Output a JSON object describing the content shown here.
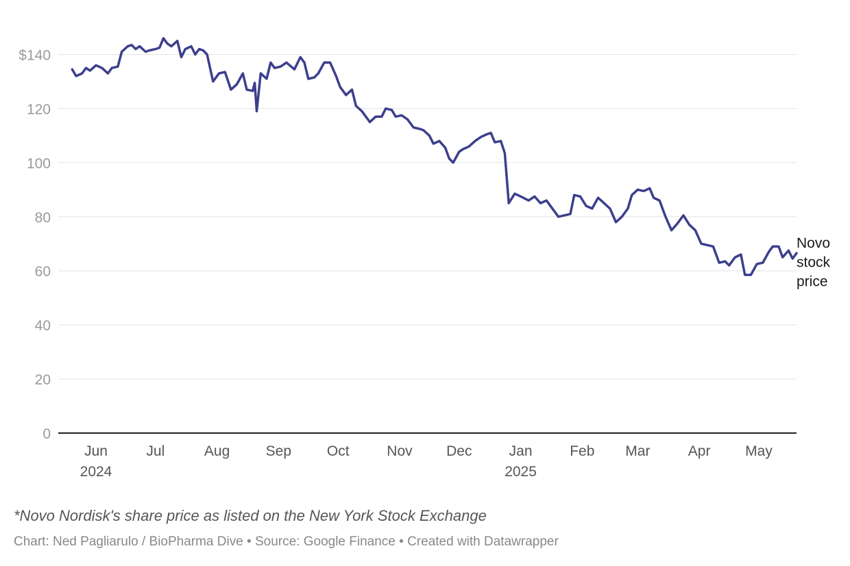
{
  "chart_data": {
    "type": "line",
    "title": "",
    "xlabel": "",
    "ylabel": "",
    "ylim": [
      0,
      150
    ],
    "y_ticks": [
      0,
      20,
      40,
      60,
      80,
      100,
      120,
      140
    ],
    "y_tick_labels": [
      "0",
      "20",
      "40",
      "60",
      "80",
      "100",
      "120",
      "$140"
    ],
    "x_range": [
      "2024-05-13",
      "2025-05-20"
    ],
    "x_ticks": [
      {
        "date": "2024-06-01",
        "label": "Jun",
        "sublabel": "2024"
      },
      {
        "date": "2024-07-01",
        "label": "Jul",
        "sublabel": ""
      },
      {
        "date": "2024-08-01",
        "label": "Aug",
        "sublabel": ""
      },
      {
        "date": "2024-09-01",
        "label": "Sep",
        "sublabel": ""
      },
      {
        "date": "2024-10-01",
        "label": "Oct",
        "sublabel": ""
      },
      {
        "date": "2024-11-01",
        "label": "Nov",
        "sublabel": ""
      },
      {
        "date": "2024-12-01",
        "label": "Dec",
        "sublabel": ""
      },
      {
        "date": "2025-01-01",
        "label": "Jan",
        "sublabel": "2025"
      },
      {
        "date": "2025-02-01",
        "label": "Feb",
        "sublabel": ""
      },
      {
        "date": "2025-03-01",
        "label": "Mar",
        "sublabel": ""
      },
      {
        "date": "2025-04-01",
        "label": "Apr",
        "sublabel": ""
      },
      {
        "date": "2025-05-01",
        "label": "May",
        "sublabel": ""
      }
    ],
    "grid": true,
    "series": [
      {
        "name": "Novo stock price",
        "color": "#3c3f8c",
        "points": [
          [
            "2024-05-20",
            134.5
          ],
          [
            "2024-05-22",
            132.0
          ],
          [
            "2024-05-25",
            133.0
          ],
          [
            "2024-05-27",
            135.0
          ],
          [
            "2024-05-29",
            134.0
          ],
          [
            "2024-06-01",
            136.0
          ],
          [
            "2024-06-04",
            135.0
          ],
          [
            "2024-06-07",
            133.0
          ],
          [
            "2024-06-09",
            135.0
          ],
          [
            "2024-06-12",
            135.5
          ],
          [
            "2024-06-14",
            141.0
          ],
          [
            "2024-06-17",
            143.0
          ],
          [
            "2024-06-19",
            143.5
          ],
          [
            "2024-06-21",
            142.0
          ],
          [
            "2024-06-23",
            143.0
          ],
          [
            "2024-06-26",
            141.0
          ],
          [
            "2024-06-28",
            141.5
          ],
          [
            "2024-07-01",
            142.0
          ],
          [
            "2024-07-03",
            142.5
          ],
          [
            "2024-07-05",
            146.0
          ],
          [
            "2024-07-07",
            144.0
          ],
          [
            "2024-07-09",
            143.0
          ],
          [
            "2024-07-12",
            145.0
          ],
          [
            "2024-07-14",
            139.0
          ],
          [
            "2024-07-16",
            142.0
          ],
          [
            "2024-07-19",
            143.0
          ],
          [
            "2024-07-21",
            140.0
          ],
          [
            "2024-07-23",
            142.0
          ],
          [
            "2024-07-25",
            141.5
          ],
          [
            "2024-07-27",
            140.0
          ],
          [
            "2024-07-30",
            130.0
          ],
          [
            "2024-08-02",
            133.0
          ],
          [
            "2024-08-05",
            133.5
          ],
          [
            "2024-08-08",
            127.0
          ],
          [
            "2024-08-11",
            129.0
          ],
          [
            "2024-08-14",
            133.0
          ],
          [
            "2024-08-16",
            127.0
          ],
          [
            "2024-08-19",
            126.5
          ],
          [
            "2024-08-20",
            129.5
          ],
          [
            "2024-08-21",
            119.0
          ],
          [
            "2024-08-23",
            133.0
          ],
          [
            "2024-08-26",
            131.0
          ],
          [
            "2024-08-28",
            137.0
          ],
          [
            "2024-08-30",
            135.0
          ],
          [
            "2024-09-02",
            135.5
          ],
          [
            "2024-09-05",
            137.0
          ],
          [
            "2024-09-09",
            134.5
          ],
          [
            "2024-09-12",
            139.0
          ],
          [
            "2024-09-14",
            137.0
          ],
          [
            "2024-09-16",
            131.0
          ],
          [
            "2024-09-19",
            131.5
          ],
          [
            "2024-09-21",
            133.0
          ],
          [
            "2024-09-24",
            137.0
          ],
          [
            "2024-09-27",
            137.0
          ],
          [
            "2024-09-30",
            132.0
          ],
          [
            "2024-10-02",
            128.0
          ],
          [
            "2024-10-05",
            125.0
          ],
          [
            "2024-10-08",
            127.0
          ],
          [
            "2024-10-10",
            121.0
          ],
          [
            "2024-10-13",
            119.0
          ],
          [
            "2024-10-17",
            115.0
          ],
          [
            "2024-10-20",
            117.0
          ],
          [
            "2024-10-23",
            117.0
          ],
          [
            "2024-10-25",
            120.0
          ],
          [
            "2024-10-28",
            119.5
          ],
          [
            "2024-10-30",
            117.0
          ],
          [
            "2024-11-02",
            117.5
          ],
          [
            "2024-11-05",
            116.0
          ],
          [
            "2024-11-08",
            113.0
          ],
          [
            "2024-11-11",
            112.5
          ],
          [
            "2024-11-13",
            112.0
          ],
          [
            "2024-11-16",
            110.0
          ],
          [
            "2024-11-18",
            107.0
          ],
          [
            "2024-11-21",
            108.0
          ],
          [
            "2024-11-24",
            105.5
          ],
          [
            "2024-11-26",
            101.5
          ],
          [
            "2024-11-28",
            100.0
          ],
          [
            "2024-12-01",
            104.0
          ],
          [
            "2024-12-03",
            105.0
          ],
          [
            "2024-12-06",
            106.0
          ],
          [
            "2024-12-09",
            108.0
          ],
          [
            "2024-12-12",
            109.5
          ],
          [
            "2024-12-15",
            110.5
          ],
          [
            "2024-12-17",
            111.0
          ],
          [
            "2024-12-19",
            107.5
          ],
          [
            "2024-12-22",
            108.0
          ],
          [
            "2024-12-24",
            103.5
          ],
          [
            "2024-12-26",
            85.0
          ],
          [
            "2024-12-29",
            88.5
          ],
          [
            "2025-01-01",
            87.5
          ],
          [
            "2025-01-05",
            86.0
          ],
          [
            "2025-01-08",
            87.5
          ],
          [
            "2025-01-11",
            85.0
          ],
          [
            "2025-01-14",
            86.0
          ],
          [
            "2025-01-17",
            83.0
          ],
          [
            "2025-01-20",
            80.0
          ],
          [
            "2025-01-23",
            80.5
          ],
          [
            "2025-01-26",
            81.0
          ],
          [
            "2025-01-28",
            88.0
          ],
          [
            "2025-01-31",
            87.5
          ],
          [
            "2025-02-03",
            84.0
          ],
          [
            "2025-02-06",
            83.0
          ],
          [
            "2025-02-09",
            87.0
          ],
          [
            "2025-02-12",
            85.0
          ],
          [
            "2025-02-15",
            83.0
          ],
          [
            "2025-02-18",
            78.0
          ],
          [
            "2025-02-21",
            80.0
          ],
          [
            "2025-02-24",
            83.0
          ],
          [
            "2025-02-26",
            88.0
          ],
          [
            "2025-03-01",
            90.0
          ],
          [
            "2025-03-04",
            89.5
          ],
          [
            "2025-03-07",
            90.5
          ],
          [
            "2025-03-09",
            87.0
          ],
          [
            "2025-03-12",
            86.0
          ],
          [
            "2025-03-15",
            80.0
          ],
          [
            "2025-03-18",
            75.0
          ],
          [
            "2025-03-21",
            77.5
          ],
          [
            "2025-03-24",
            80.5
          ],
          [
            "2025-03-27",
            77.0
          ],
          [
            "2025-03-30",
            75.0
          ],
          [
            "2025-04-02",
            70.0
          ],
          [
            "2025-04-05",
            69.5
          ],
          [
            "2025-04-08",
            69.0
          ],
          [
            "2025-04-11",
            63.0
          ],
          [
            "2025-04-14",
            63.5
          ],
          [
            "2025-04-16",
            62.0
          ],
          [
            "2025-04-19",
            65.0
          ],
          [
            "2025-04-22",
            66.0
          ],
          [
            "2025-04-24",
            58.5
          ],
          [
            "2025-04-27",
            58.5
          ],
          [
            "2025-04-30",
            62.5
          ],
          [
            "2025-05-03",
            63.0
          ],
          [
            "2025-05-06",
            67.0
          ],
          [
            "2025-05-08",
            69.0
          ],
          [
            "2025-05-11",
            69.0
          ],
          [
            "2025-05-13",
            65.0
          ],
          [
            "2025-05-16",
            67.5
          ],
          [
            "2025-05-18",
            64.5
          ],
          [
            "2025-05-20",
            66.5
          ]
        ]
      }
    ]
  },
  "notes": {
    "footnote": "*Novo Nordisk's share price as listed on the New York Stock Exchange",
    "byline": "Chart: Ned Pagliarulo / BioPharma Dive • Source: Google Finance • Created with Datawrapper"
  }
}
